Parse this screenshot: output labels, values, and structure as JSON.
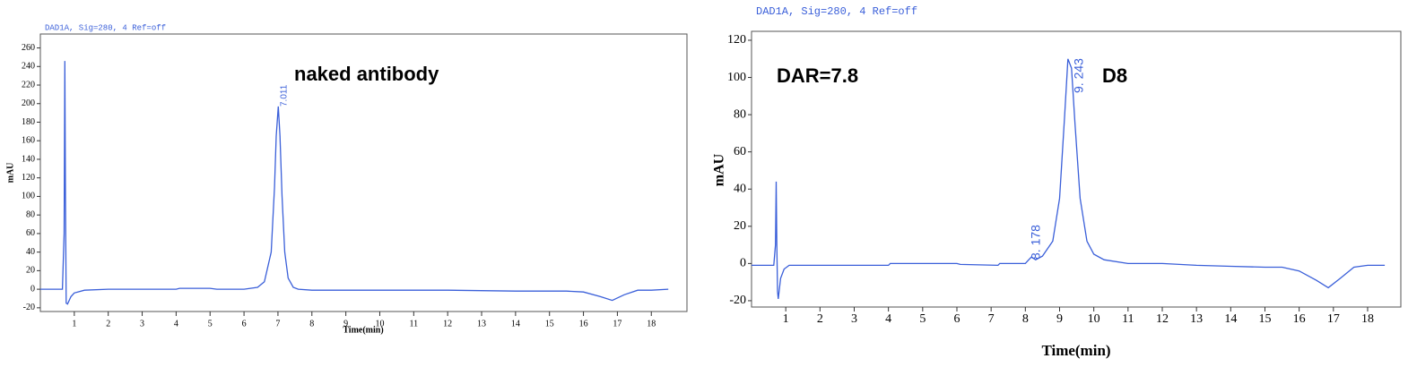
{
  "chart_data": [
    {
      "type": "line",
      "title": "DAD1A, Sig=280, 4  Ref=off",
      "y_label": "mAU",
      "x_label": "Time(min)",
      "annotations": [
        "naked antibody",
        "7.011"
      ],
      "color": "#3a5fd9",
      "x": [
        0,
        0.65,
        0.7,
        0.72,
        0.74,
        0.76,
        0.8,
        0.9,
        1.0,
        1.3,
        2,
        3,
        4,
        4.1,
        5,
        5.2,
        6,
        6.4,
        6.6,
        6.8,
        6.9,
        6.95,
        7.01,
        7.06,
        7.12,
        7.2,
        7.3,
        7.45,
        7.6,
        8,
        10,
        12,
        14,
        15.5,
        16,
        16.5,
        16.85,
        17.2,
        17.6,
        18,
        18.5
      ],
      "values": [
        0,
        0,
        60,
        246,
        100,
        -15,
        -16,
        -8,
        -4,
        -1,
        0,
        0,
        0,
        1,
        1,
        0,
        0,
        2,
        8,
        40,
        110,
        165,
        197,
        165,
        100,
        40,
        12,
        2,
        0,
        -1,
        -1,
        -1,
        -2,
        -2,
        -3,
        -8,
        -12,
        -6,
        -1,
        -1,
        0
      ],
      "xlim": [
        0,
        19.05
      ],
      "ylim": [
        -24,
        275
      ],
      "xticks": [
        1,
        2,
        3,
        4,
        5,
        6,
        7,
        8,
        9,
        10,
        11,
        12,
        13,
        14,
        15,
        16,
        17,
        18
      ],
      "yticks": [
        -20,
        0,
        20,
        40,
        60,
        80,
        100,
        120,
        140,
        160,
        180,
        200,
        220,
        240,
        260
      ]
    },
    {
      "type": "line",
      "title": "DAD1A, Sig=280, 4  Ref=off",
      "y_label": "mAU",
      "x_label": "Time(min)",
      "annotations": [
        "DAR=7.8",
        "D8",
        "8. 178",
        "9. 243"
      ],
      "color": "#3a5fd9",
      "x": [
        0,
        0.65,
        0.7,
        0.72,
        0.74,
        0.76,
        0.78,
        0.85,
        0.95,
        1.1,
        4,
        4.05,
        6,
        6.1,
        7.2,
        7.25,
        8,
        8.1,
        8.178,
        8.3,
        8.5,
        8.8,
        9.0,
        9.15,
        9.243,
        9.35,
        9.45,
        9.6,
        9.8,
        10.0,
        10.3,
        11,
        12,
        13,
        14,
        15,
        15.5,
        16,
        16.5,
        16.85,
        17.2,
        17.6,
        18,
        18.5
      ],
      "values": [
        -1,
        -1,
        10,
        44,
        10,
        -15,
        -19,
        -8,
        -3,
        -1,
        -1,
        0,
        0,
        -0.5,
        -1,
        0,
        0,
        2,
        3.5,
        2,
        4,
        12,
        35,
        80,
        110,
        105,
        75,
        35,
        12,
        5,
        2,
        0,
        0,
        -1,
        -1.5,
        -2,
        -2,
        -4,
        -9,
        -13,
        -8,
        -2,
        -1,
        -1
      ],
      "xlim": [
        0,
        18.97
      ],
      "ylim": [
        -23.4,
        124.8
      ],
      "xticks": [
        1,
        2,
        3,
        4,
        5,
        6,
        7,
        8,
        9,
        10,
        11,
        12,
        13,
        14,
        15,
        16,
        17,
        18
      ],
      "yticks": [
        -20,
        0,
        20,
        40,
        60,
        80,
        100,
        120
      ]
    }
  ]
}
